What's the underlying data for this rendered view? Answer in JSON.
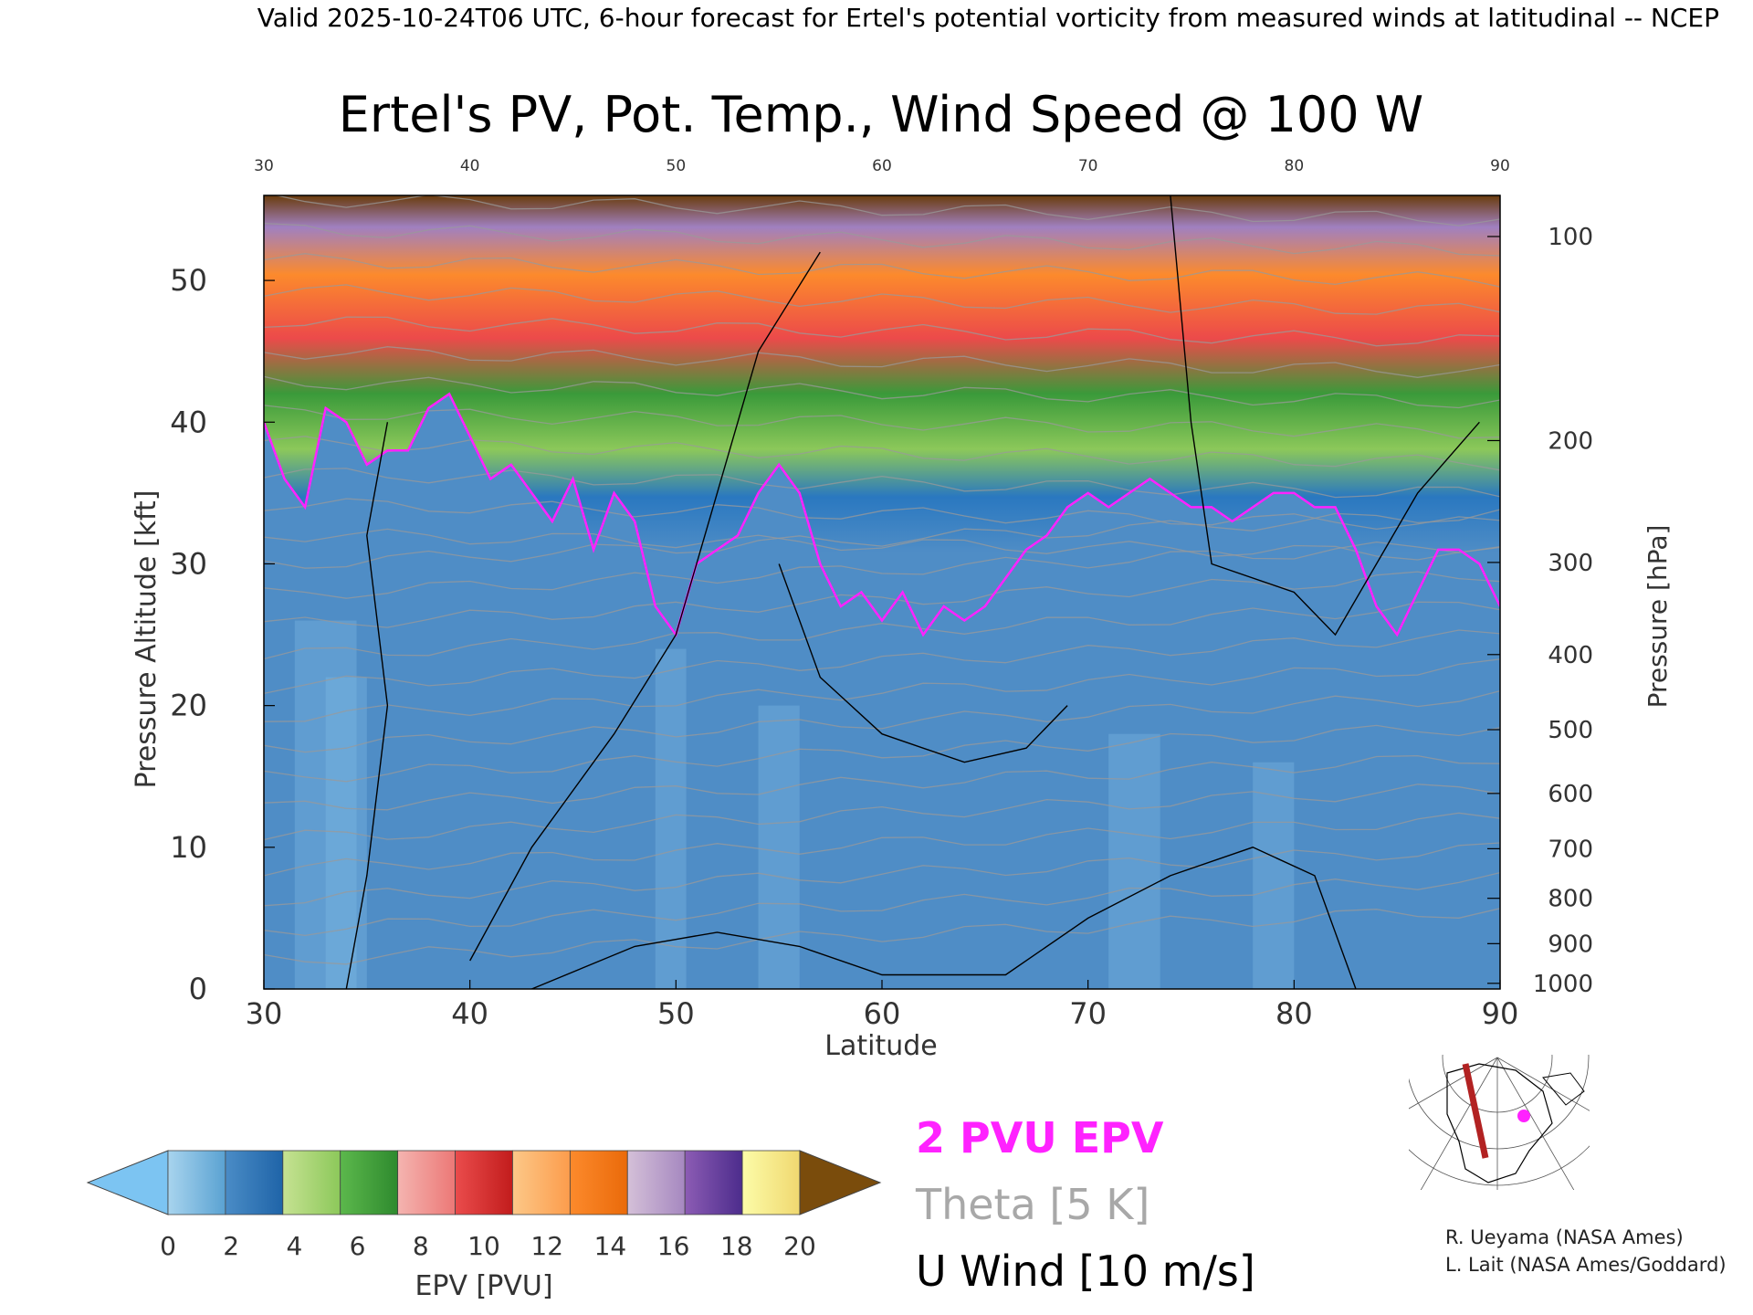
{
  "header": {
    "text": "Valid 2025-10-24T06 UTC, 6-hour forecast for Ertel's potential vorticity from measured winds at latitudinal -- NCEP"
  },
  "chart_data": {
    "type": "heatmap",
    "title": "Ertel's PV, Pot. Temp., Wind Speed @ 100 W",
    "xlabel": "Latitude",
    "ylabel": "Pressure Altitude [kft]",
    "ylabel_right": "Pressure [hPa]",
    "xlim": [
      30,
      90
    ],
    "ylim": [
      0,
      56
    ],
    "x_ticks": [
      30,
      40,
      50,
      60,
      70,
      80,
      90
    ],
    "y_ticks": [
      0,
      10,
      20,
      30,
      40,
      50
    ],
    "pressure_ticks": [
      {
        "label": "100",
        "kft": 53.1
      },
      {
        "label": "200",
        "kft": 38.7
      },
      {
        "label": "300",
        "kft": 30.1
      },
      {
        "label": "400",
        "kft": 23.6
      },
      {
        "label": "500",
        "kft": 18.3
      },
      {
        "label": "600",
        "kft": 13.8
      },
      {
        "label": "700",
        "kft": 9.9
      },
      {
        "label": "800",
        "kft": 6.4
      },
      {
        "label": "900",
        "kft": 3.2
      },
      {
        "label": "1000",
        "kft": 0.4
      }
    ],
    "tropopause_2pvu": [
      [
        30,
        40
      ],
      [
        31,
        36
      ],
      [
        32,
        34
      ],
      [
        33,
        41
      ],
      [
        34,
        40
      ],
      [
        35,
        37
      ],
      [
        36,
        38
      ],
      [
        37,
        38
      ],
      [
        38,
        41
      ],
      [
        39,
        42
      ],
      [
        40,
        39
      ],
      [
        41,
        36
      ],
      [
        42,
        37
      ],
      [
        43,
        35
      ],
      [
        44,
        33
      ],
      [
        45,
        36
      ],
      [
        46,
        31
      ],
      [
        47,
        35
      ],
      [
        48,
        33
      ],
      [
        49,
        27
      ],
      [
        50,
        25
      ],
      [
        51,
        30
      ],
      [
        52,
        31
      ],
      [
        53,
        32
      ],
      [
        54,
        35
      ],
      [
        55,
        37
      ],
      [
        56,
        35
      ],
      [
        57,
        30
      ],
      [
        58,
        27
      ],
      [
        59,
        28
      ],
      [
        60,
        26
      ],
      [
        61,
        28
      ],
      [
        62,
        25
      ],
      [
        63,
        27
      ],
      [
        64,
        26
      ],
      [
        65,
        27
      ],
      [
        66,
        29
      ],
      [
        67,
        31
      ],
      [
        68,
        32
      ],
      [
        69,
        34
      ],
      [
        70,
        35
      ],
      [
        71,
        34
      ],
      [
        72,
        35
      ],
      [
        73,
        36
      ],
      [
        74,
        35
      ],
      [
        75,
        34
      ],
      [
        76,
        34
      ],
      [
        77,
        33
      ],
      [
        78,
        34
      ],
      [
        79,
        35
      ],
      [
        80,
        35
      ],
      [
        81,
        34
      ],
      [
        82,
        34
      ],
      [
        83,
        31
      ],
      [
        84,
        27
      ],
      [
        85,
        25
      ],
      [
        86,
        28
      ],
      [
        87,
        31
      ],
      [
        88,
        31
      ],
      [
        89,
        30
      ],
      [
        90,
        27
      ]
    ],
    "colorbar": {
      "label": "EPV [PVU]",
      "ticks": [
        0,
        2,
        4,
        6,
        8,
        10,
        12,
        14,
        16,
        18,
        20
      ],
      "under_color": "#7cc4f2",
      "over_color": "#7a4c0c",
      "segments": [
        [
          "#a8d4ee",
          "#5aa2d2"
        ],
        [
          "#4a8cc6",
          "#1f64a8"
        ],
        [
          "#c6e292",
          "#8cc85a"
        ],
        [
          "#5cb84c",
          "#2e8a2e"
        ],
        [
          "#f4b4b0",
          "#ec7876"
        ],
        [
          "#ea4c4c",
          "#c21c1c"
        ],
        [
          "#fcc888",
          "#fc9c4c"
        ],
        [
          "#fc8a2c",
          "#ea6a0a"
        ],
        [
          "#d4c0d8",
          "#a688c0"
        ],
        [
          "#8c5cb4",
          "#4c2c8c"
        ],
        [
          "#fcfca8",
          "#f0d870"
        ]
      ]
    },
    "legend": [
      {
        "label": "2 PVU EPV",
        "color": "#ff22ff"
      },
      {
        "label": "Theta [5 K]",
        "color": "#a8a8a8"
      },
      {
        "label": "U Wind [10 m/s]",
        "color": "#000000"
      }
    ]
  },
  "credits": {
    "line1": "R. Ueyama (NASA Ames)",
    "line2": "L. Lait (NASA Ames/Goddard)"
  },
  "inset_map": {
    "section_color": "#b22222",
    "marker_color": "#ff22ff"
  }
}
